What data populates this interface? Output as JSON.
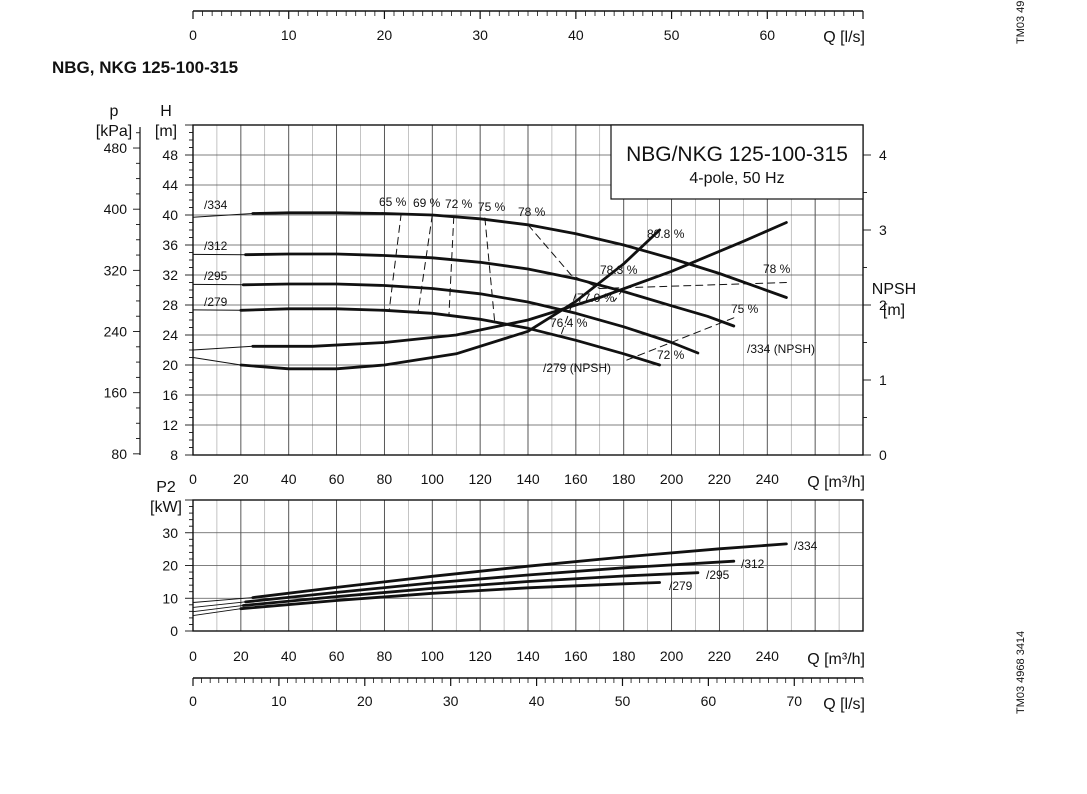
{
  "page": {
    "title": "NBG, NKG 125-100-315",
    "code_top": "TM03 49",
    "code_bottom": "TM03 4968 3414"
  },
  "chart_data": {
    "type": "line",
    "top_flow_axis": {
      "label": "Q [l/s]",
      "ticks": [
        0,
        10,
        20,
        30,
        40,
        50,
        60
      ],
      "range": [
        0,
        70
      ]
    },
    "main": {
      "title": "NBG/NKG 125-100-315",
      "subtitle": "4-pole, 50 Hz",
      "x": {
        "label": "Q [m³/h]",
        "range": [
          0,
          280
        ],
        "ticks": [
          0,
          20,
          40,
          60,
          80,
          100,
          120,
          140,
          160,
          180,
          200,
          220,
          240
        ]
      },
      "y_head": {
        "label_top": "H",
        "label_unit": "[m]",
        "range": [
          8,
          52
        ],
        "ticks": [
          8,
          12,
          16,
          20,
          24,
          28,
          32,
          36,
          40,
          44,
          48
        ]
      },
      "y_pressure": {
        "label_top": "p",
        "label_unit": "[kPa]",
        "ticks": [
          80,
          160,
          240,
          320,
          400,
          480
        ]
      },
      "y_npsh": {
        "label_top": "NPSH",
        "label_unit": "[m]",
        "range": [
          0,
          4.4
        ],
        "ticks": [
          0,
          1,
          2,
          3,
          4
        ]
      },
      "head_series": [
        {
          "name": "/334",
          "x": [
            25,
            40,
            60,
            80,
            100,
            120,
            140,
            160,
            180,
            200,
            220,
            235,
            248
          ],
          "y": [
            40.2,
            40.3,
            40.3,
            40.2,
            40.0,
            39.5,
            38.7,
            37.5,
            36.0,
            34.2,
            32.2,
            30.5,
            29.0
          ]
        },
        {
          "name": "/312",
          "x": [
            22,
            40,
            60,
            80,
            100,
            120,
            140,
            160,
            180,
            200,
            215,
            226
          ],
          "y": [
            34.7,
            34.8,
            34.8,
            34.6,
            34.3,
            33.7,
            32.8,
            31.5,
            29.8,
            27.9,
            26.5,
            25.2
          ]
        },
        {
          "name": "/295",
          "x": [
            21,
            40,
            60,
            80,
            100,
            120,
            140,
            160,
            180,
            200,
            211
          ],
          "y": [
            30.7,
            30.8,
            30.8,
            30.6,
            30.2,
            29.5,
            28.4,
            26.9,
            25.1,
            23.0,
            21.6
          ]
        },
        {
          "name": "/279",
          "x": [
            20,
            40,
            60,
            80,
            100,
            120,
            140,
            160,
            180,
            195
          ],
          "y": [
            27.3,
            27.5,
            27.5,
            27.3,
            26.9,
            26.1,
            24.9,
            23.3,
            21.5,
            20.0
          ]
        }
      ],
      "npsh_series": [
        {
          "name": "/334 (NPSH)",
          "x": [
            25,
            50,
            80,
            110,
            140,
            170,
            200,
            230,
            248
          ],
          "y": [
            1.45,
            1.45,
            1.5,
            1.6,
            1.8,
            2.1,
            2.45,
            2.85,
            3.1
          ]
        },
        {
          "name": "/279 (NPSH)",
          "x": [
            20,
            40,
            60,
            80,
            110,
            140,
            160,
            180,
            195
          ],
          "y": [
            1.2,
            1.15,
            1.15,
            1.2,
            1.35,
            1.65,
            2.05,
            2.55,
            3.0
          ]
        }
      ],
      "efficiency_labels": [
        "65 %",
        "69 %",
        "72 %",
        "75 %",
        "78 %",
        "80.8 %",
        "78.3 %",
        "78 %",
        "77.0 %",
        "75 %",
        "76.4 %",
        "72 %"
      ],
      "efficiency_lines": [
        {
          "x": [
            87,
            82
          ],
          "y": [
            40.2,
            27.3
          ]
        },
        {
          "x": [
            100,
            94
          ],
          "y": [
            40.0,
            26.9
          ]
        },
        {
          "x": [
            109,
            107
          ],
          "y": [
            39.8,
            26.8
          ]
        },
        {
          "x": [
            122,
            126
          ],
          "y": [
            39.6,
            26.0
          ]
        },
        {
          "x": [
            140,
            158,
            170
          ],
          "y": [
            38.7,
            32.0,
            30.2
          ]
        },
        {
          "x": [
            170,
            248
          ],
          "y": [
            30.2,
            31.0
          ]
        },
        {
          "x": [
            160,
            154
          ],
          "y": [
            29.5,
            24.2
          ]
        },
        {
          "x": [
            180,
            176
          ],
          "y": [
            30.2,
            28.5
          ]
        },
        {
          "x": [
            226,
            180
          ],
          "y": [
            26.3,
            20.5
          ]
        }
      ]
    },
    "power": {
      "y": {
        "label_top": "P2",
        "label_unit": "[kW]",
        "range": [
          0,
          40
        ],
        "ticks": [
          0,
          10,
          20,
          30
        ]
      },
      "x": {
        "label": "Q [m³/h]",
        "range": [
          0,
          280
        ],
        "ticks": [
          0,
          20,
          40,
          60,
          80,
          100,
          120,
          140,
          160,
          180,
          200,
          220,
          240
        ]
      },
      "series": [
        {
          "name": "/334",
          "x": [
            25,
            60,
            100,
            140,
            180,
            220,
            248
          ],
          "y": [
            10.2,
            13.3,
            16.7,
            19.8,
            22.6,
            25.1,
            26.6
          ]
        },
        {
          "name": "/312",
          "x": [
            22,
            60,
            100,
            140,
            180,
            226
          ],
          "y": [
            8.9,
            11.8,
            14.7,
            17.1,
            19.3,
            21.3
          ]
        },
        {
          "name": "/295",
          "x": [
            21,
            60,
            100,
            140,
            180,
            211
          ],
          "y": [
            7.8,
            10.5,
            13.0,
            15.1,
            16.8,
            17.8
          ]
        },
        {
          "name": "/279",
          "x": [
            20,
            60,
            100,
            140,
            180,
            195
          ],
          "y": [
            6.8,
            9.3,
            11.5,
            13.2,
            14.4,
            14.8
          ]
        }
      ]
    },
    "bottom_flow_axis": {
      "label": "Q [l/s]",
      "ticks": [
        0,
        10,
        20,
        30,
        40,
        50,
        60,
        70
      ],
      "range": [
        0,
        78
      ]
    }
  }
}
